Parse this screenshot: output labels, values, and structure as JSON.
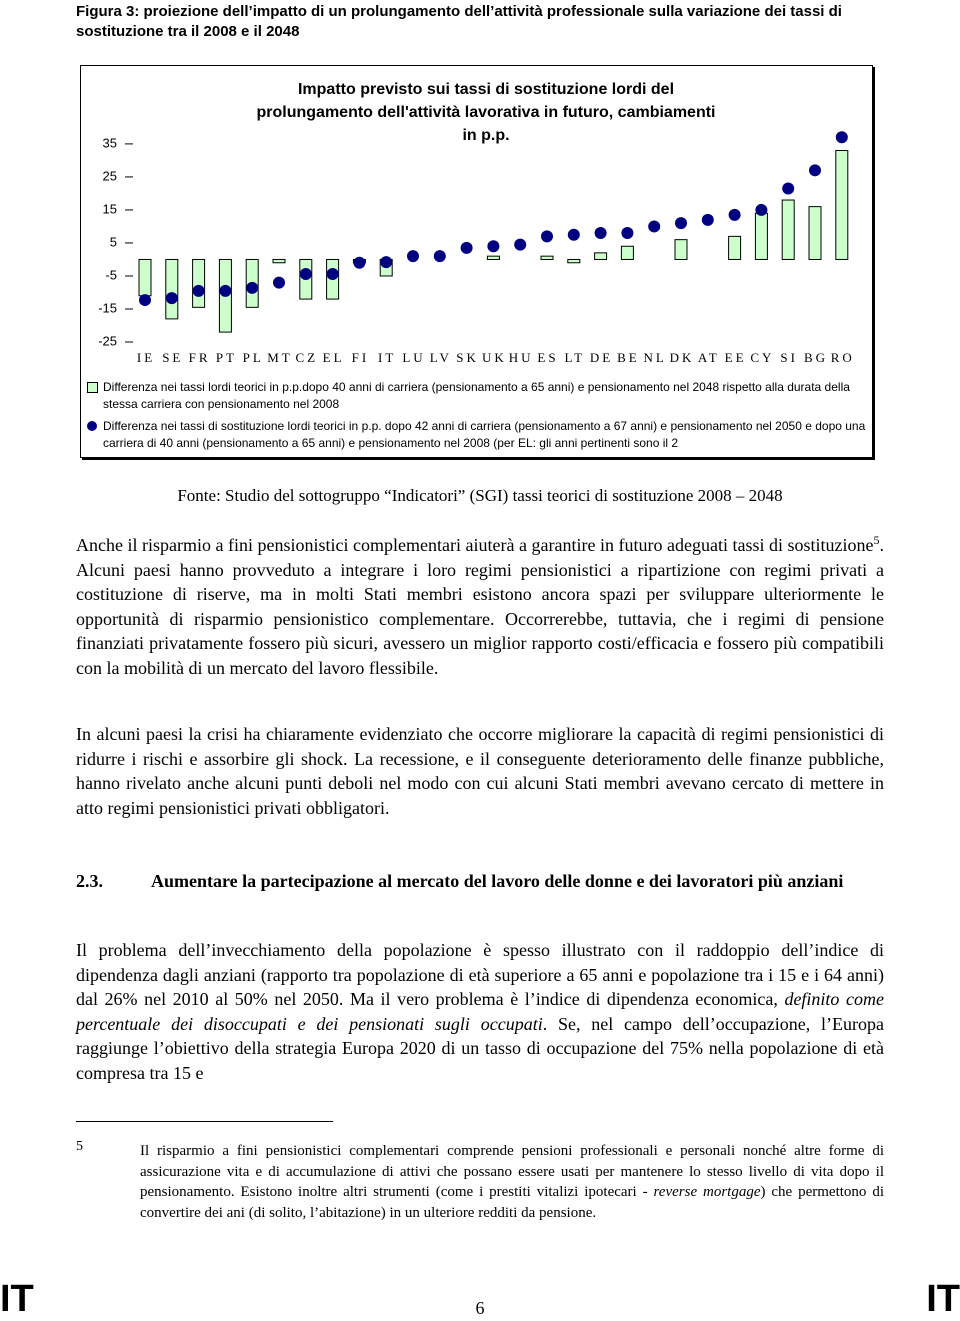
{
  "header": {
    "figure_caption": "Figura 3: proiezione dell’impatto di un prolungamento dell’attività professionale sulla variazione dei tassi di sostituzione tra il 2008 e il 2048"
  },
  "chart_data": {
    "type": "bar",
    "title": "Impatto previsto sui tassi di sostituzione lordi del prolungamento dell'attività lavorativa in futuro, cambiamenti in p.p.",
    "categories": [
      "IE",
      "SE",
      "FR",
      "PT",
      "PL",
      "MT",
      "CZ",
      "EL",
      "FI",
      "IT",
      "LU",
      "LV",
      "SK",
      "UK",
      "HU",
      "ES",
      "LT",
      "DE",
      "BE",
      "NL",
      "DK",
      "AT",
      "EE",
      "CY",
      "SI",
      "BG",
      "RO"
    ],
    "series": [
      {
        "name": "Differenza nei tassi lordi teorici in p.p.dopo 40 anni di carriera (pensionamento a 65 anni) e pensionamento nel 2048 rispetto alla durata della stessa carriera con pensionamento nel 2008",
        "type": "bar",
        "color": "#ccffcc",
        "values": [
          -11,
          -18,
          -14.5,
          -22,
          -14.5,
          -1,
          -12,
          -12,
          -1,
          -5,
          0,
          0,
          0,
          1,
          0,
          1,
          -1,
          2,
          4,
          0,
          6,
          0,
          7,
          14,
          18,
          16,
          33
        ]
      },
      {
        "name": "Differenza nei tassi di sostituzione lordi teorici in p.p. dopo 42 anni di carriera (pensionamento a 67 anni) e pensionamento nel 2050 e dopo una carriera di 40 anni (pensionamento a 65 anni) e pensionamento nel 2008 (per EL: gli anni pertinenti sono il 2",
        "type": "scatter",
        "color": "#000080",
        "values": [
          -12.3,
          -11.7,
          -9.5,
          -9.5,
          -8.6,
          -7,
          -4.4,
          -4.4,
          -1,
          -0.8,
          1,
          1,
          3.5,
          4,
          4.5,
          7,
          7.5,
          8,
          8,
          10,
          11,
          12,
          13.5,
          15,
          21.5,
          27,
          37
        ]
      }
    ],
    "ylim": [
      -25,
      38
    ],
    "yticks": [
      35,
      25,
      15,
      5,
      -5,
      -15,
      -25
    ],
    "grid": false
  },
  "source": "Fonte: Studio del sottogruppo “Indicatori” (SGI) tassi teorici di sostituzione 2008 – 2048",
  "paragraphs": [
    [
      "Anche il risparmio a fini pensionistici complementari aiuterà a garantire in futuro adeguati tassi di sostituzione",
      "5",
      ". Alcuni paesi hanno provveduto a integrare i loro regimi pensionistici a ripartizione con regimi privati a costituzione di riserve, ma in molti Stati membri esistono ancora spazi per sviluppare ulteriormente le opportunità di risparmio pensionistico complementare. Occorrerebbe, tuttavia, che i regimi di pensione finanziati privatamente fossero più sicuri, avessero un miglior rapporto costi/efficacia e fossero più compatibili con la mobilità di un mercato del lavoro flessibile."
    ],
    [
      "In alcuni paesi la crisi ha chiaramente evidenziato che occorre migliorare la capacità di regimi pensionistici di ridurre i rischi e assorbire gli shock. La recessione, e il conseguente deterioramento delle finanze pubbliche, hanno rivelato anche alcuni punti deboli nel modo con cui alcuni Stati membri avevano cercato di mettere in atto regimi pensionistici privati obbligatori."
    ],
    [
      "Il problema dell’invecchiamento della popolazione è spesso illustrato con il raddoppio dell’indice di dipendenza dagli anziani (rapporto tra popolazione di età superiore a 65 anni e popolazione tra i 15 e i 64 anni) dal 26% nel 2010 al 50% nel 2050. Ma il vero problema è l’indice di dipendenza economica, ",
      "definito come percentuale dei disoccupati e dei pensionati sugli occupati",
      ". Se, nel campo dell’occupazione, l’Europa raggiunge l’obiettivo della strategia Europa 2020 di un tasso di occupazione del 75% nella popolazione di età compresa tra 15 e"
    ]
  ],
  "section": {
    "number": "2.3.",
    "title": "Aumentare la partecipazione al mercato del lavoro delle donne e dei lavoratori più anziani"
  },
  "footnote": {
    "number": "5",
    "runs": [
      "Il risparmio a fini pensionistici complementari comprende pensioni professionali e personali nonché altre forme di assicurazione vita e di accumulazione di attivi che possano essere usati per mantenere lo stesso livello di vita dopo il pensionamento. Esistono inoltre altri strumenti (come i prestiti vitalizi ipotecari - ",
      "reverse mortgage",
      ") che permettono di convertire dei ani (di solito, l’abitazione) in un ulteriore redditi da pensione."
    ]
  },
  "footer": {
    "left": "IT",
    "page_number": "6",
    "right": "IT"
  }
}
